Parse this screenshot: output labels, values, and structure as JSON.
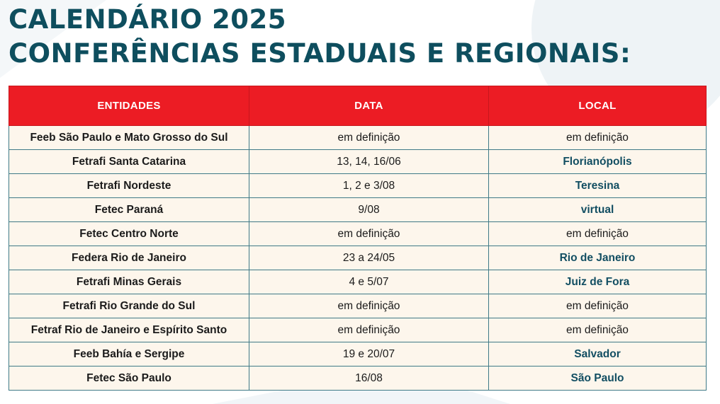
{
  "title": {
    "line1": "CALENDÁRIO 2025",
    "line2": "CONFERÊNCIAS ESTADUAIS E REGIONAIS:"
  },
  "colors": {
    "title": "#0e4e5e",
    "header_bg": "#ec1c24",
    "row_bg": "#fdf6ec",
    "location_accent": "#124e62"
  },
  "table": {
    "headers": [
      "ENTIDADES",
      "DATA",
      "LOCAL"
    ],
    "rows": [
      {
        "entidade": "Feeb São Paulo e Mato Grosso do Sul",
        "data": "em definição",
        "local": "em definição",
        "local_defined": false
      },
      {
        "entidade": "Fetrafi Santa Catarina",
        "data": "13, 14, 16/06",
        "local": "Florianópolis",
        "local_defined": true
      },
      {
        "entidade": "Fetrafi Nordeste",
        "data": "1, 2 e 3/08",
        "local": "Teresina",
        "local_defined": true
      },
      {
        "entidade": "Fetec Paraná",
        "data": "9/08",
        "local": "virtual",
        "local_defined": true
      },
      {
        "entidade": "Fetec Centro Norte",
        "data": "em definição",
        "local": "em definição",
        "local_defined": false
      },
      {
        "entidade": "Federa Rio de Janeiro",
        "data": "23 a 24/05",
        "local": "Rio de Janeiro",
        "local_defined": true
      },
      {
        "entidade": "Fetrafi Minas Gerais",
        "data": "4 e 5/07",
        "local": "Juiz de Fora",
        "local_defined": true
      },
      {
        "entidade": "Fetrafi Rio Grande do Sul",
        "data": "em definição",
        "local": "em definição",
        "local_defined": false
      },
      {
        "entidade": "Fetraf Rio de Janeiro e Espírito Santo",
        "data": "em definição",
        "local": "em definição",
        "local_defined": false
      },
      {
        "entidade": "Feeb Bahía e Sergipe",
        "data": "19 e 20/07",
        "local": "Salvador",
        "local_defined": true
      },
      {
        "entidade": "Fetec São Paulo",
        "data": "16/08",
        "local": "São Paulo",
        "local_defined": true
      }
    ]
  }
}
